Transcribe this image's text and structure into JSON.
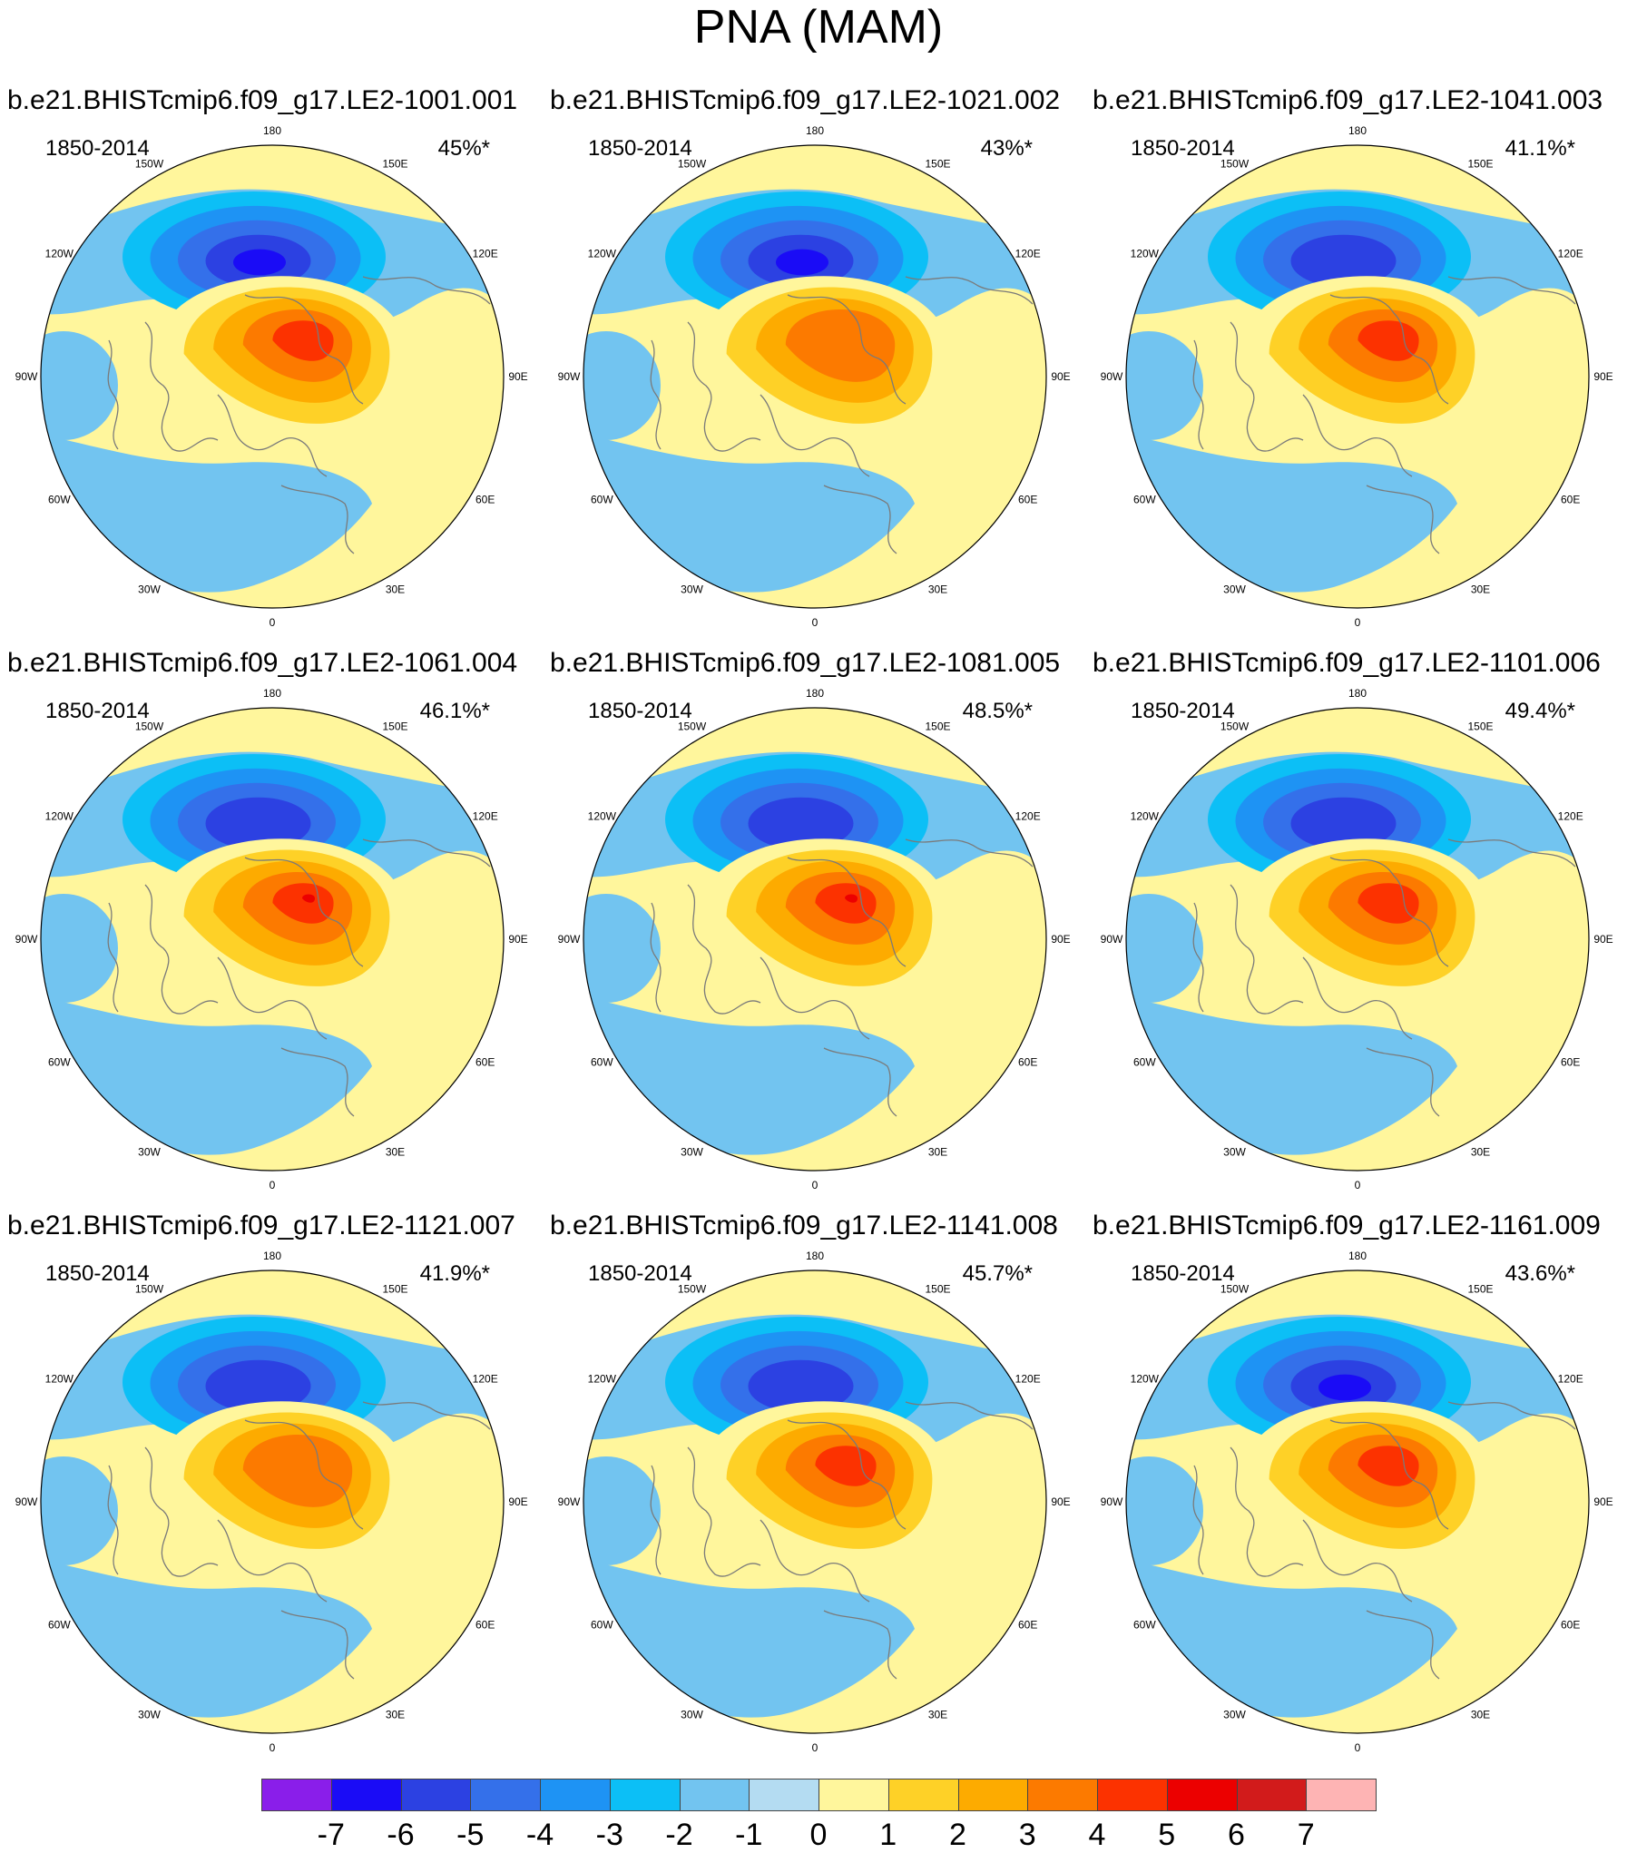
{
  "figure_title": "PNA (MAM)",
  "chart_data": {
    "type": "polar-contour-panels",
    "projection": "north polar stereographic",
    "panels": [
      {
        "case": "b.e21.BHISTcmip6.f09_g17.LE2-1001.001",
        "period": "1850-2014",
        "variance_explained": "45%*",
        "neg_min": -6,
        "pos_max": 5
      },
      {
        "case": "b.e21.BHISTcmip6.f09_g17.LE2-1021.002",
        "period": "1850-2014",
        "variance_explained": "43%*",
        "neg_min": -6,
        "pos_max": 4
      },
      {
        "case": "b.e21.BHISTcmip6.f09_g17.LE2-1041.003",
        "period": "1850-2014",
        "variance_explained": "41.1%*",
        "neg_min": -5,
        "pos_max": 5
      },
      {
        "case": "b.e21.BHISTcmip6.f09_g17.LE2-1061.004",
        "period": "1850-2014",
        "variance_explained": "46.1%*",
        "neg_min": -5,
        "pos_max": 6
      },
      {
        "case": "b.e21.BHISTcmip6.f09_g17.LE2-1081.005",
        "period": "1850-2014",
        "variance_explained": "48.5%*",
        "neg_min": -5,
        "pos_max": 6
      },
      {
        "case": "b.e21.BHISTcmip6.f09_g17.LE2-1101.006",
        "period": "1850-2014",
        "variance_explained": "49.4%*",
        "neg_min": -5,
        "pos_max": 5
      },
      {
        "case": "b.e21.BHISTcmip6.f09_g17.LE2-1121.007",
        "period": "1850-2014",
        "variance_explained": "41.9%*",
        "neg_min": -5,
        "pos_max": 4
      },
      {
        "case": "b.e21.BHISTcmip6.f09_g17.LE2-1141.008",
        "period": "1850-2014",
        "variance_explained": "45.7%*",
        "neg_min": -5,
        "pos_max": 5
      },
      {
        "case": "b.e21.BHISTcmip6.f09_g17.LE2-1161.009",
        "period": "1850-2014",
        "variance_explained": "43.6%*",
        "neg_min": -6,
        "pos_max": 5
      }
    ],
    "longitude_labels": [
      "180",
      "150E",
      "120E",
      "90E",
      "60E",
      "30E",
      "0",
      "30W",
      "60W",
      "90W",
      "120W",
      "150W"
    ],
    "colorbar": {
      "labels": [
        "-7",
        "-6",
        "-5",
        "-4",
        "-3",
        "-2",
        "-1",
        "0",
        "1",
        "2",
        "3",
        "4",
        "5",
        "6",
        "7"
      ],
      "colors": [
        "#8a1eea",
        "#1a0cf6",
        "#2c41e2",
        "#3470ea",
        "#1e93f4",
        "#0cbff6",
        "#72c4f0",
        "#b4dcf2",
        "#fff69c",
        "#fed127",
        "#fdab00",
        "#fc7a00",
        "#fc3200",
        "#ec0000",
        "#d21b1b",
        "#feb4b4"
      ]
    }
  }
}
